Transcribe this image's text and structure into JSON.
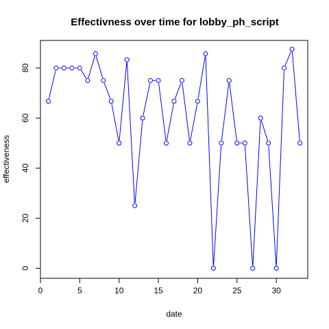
{
  "chart_data": {
    "type": "line",
    "title": "Effectivness over time for lobby_ph_script",
    "xlabel": "date",
    "ylabel": "effectiveness",
    "xlim": [
      0,
      34
    ],
    "ylim": [
      -4,
      91
    ],
    "x_ticks": [
      0,
      5,
      10,
      15,
      20,
      25,
      30
    ],
    "y_ticks": [
      0,
      20,
      40,
      60,
      80
    ],
    "grid": false,
    "series": [
      {
        "color": "#0000ff",
        "marker": "open-circle",
        "x": [
          1,
          2,
          3,
          4,
          5,
          6,
          7,
          8,
          9,
          10,
          11,
          12,
          13,
          14,
          15,
          16,
          17,
          18,
          19,
          20,
          21,
          22,
          23,
          24,
          25,
          26,
          27,
          28,
          29,
          30,
          31,
          32,
          33
        ],
        "values": [
          66.7,
          80,
          80,
          80,
          80,
          75,
          85.7,
          75,
          66.7,
          50,
          83.3,
          25,
          60,
          75,
          75,
          50,
          66.7,
          75,
          50,
          66.7,
          85.7,
          0,
          50,
          75,
          50,
          50,
          0,
          60,
          50,
          0,
          80,
          87.5,
          50
        ]
      }
    ]
  }
}
